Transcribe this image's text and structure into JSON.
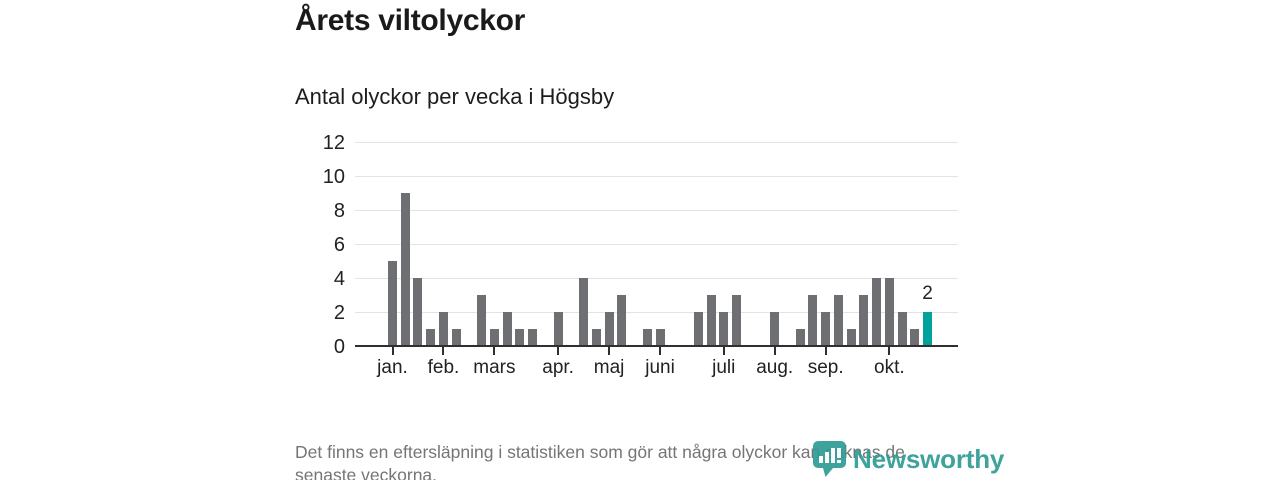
{
  "page": {
    "title": "Årets viltolyckor",
    "subtitle": "Antal olyckor per vecka i Högsby",
    "footer": {
      "line1": "Det finns en eftersläpning i statistiken som gör att några olyckor kan saknas de",
      "line2": "senaste veckorna."
    },
    "logo": {
      "text": "Newsworthy",
      "icon": "newsworthy-speech-bubble-chart-icon",
      "color": "#2e9c94"
    }
  },
  "chart_data": {
    "type": "bar",
    "title": "Årets viltolyckor",
    "subtitle": "Antal olyckor per vecka i Högsby",
    "x_unit": "vecka",
    "x_range_note": "en stapel per vecka, januari till oktober",
    "values": [
      5,
      9,
      4,
      1,
      2,
      1,
      0,
      3,
      1,
      2,
      1,
      1,
      0,
      2,
      0,
      4,
      1,
      2,
      3,
      0,
      1,
      1,
      0,
      0,
      2,
      3,
      2,
      3,
      0,
      0,
      2,
      0,
      1,
      3,
      2,
      3,
      1,
      3,
      4,
      4,
      2,
      1,
      2
    ],
    "month_ticks": [
      {
        "label": "jan.",
        "week_index": 0
      },
      {
        "label": "feb.",
        "week_index": 4
      },
      {
        "label": "mars",
        "week_index": 8
      },
      {
        "label": "apr.",
        "week_index": 13
      },
      {
        "label": "maj",
        "week_index": 17
      },
      {
        "label": "juni",
        "week_index": 21
      },
      {
        "label": "juli",
        "week_index": 26
      },
      {
        "label": "aug.",
        "week_index": 30
      },
      {
        "label": "sep.",
        "week_index": 34
      },
      {
        "label": "okt.",
        "week_index": 39
      }
    ],
    "yticks": [
      0,
      2,
      4,
      6,
      8,
      10,
      12
    ],
    "ylim": [
      0,
      12
    ],
    "grid": true,
    "legend": "none",
    "bar_color": "#6e6f72",
    "highlight_color": "#00a39b",
    "highlight_index": 42,
    "highlight_value_label": "2",
    "axis_color": "#2f2f2f",
    "gridline_color": "#e3e3e3"
  }
}
